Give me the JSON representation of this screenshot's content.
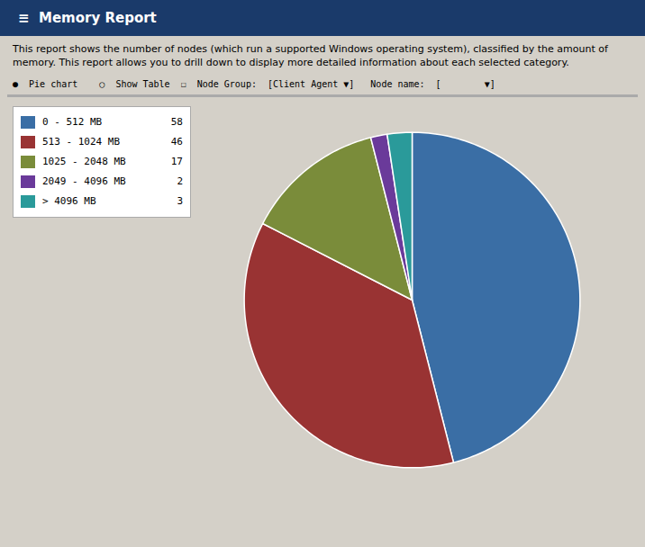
{
  "chart_data": {
    "type": "pie",
    "title": "≡  Memory Report",
    "subtitle": "This report shows the number of nodes (which run a supported Windows operating system), classified by the amount of\nmemory. This report allows you to drill down to display more detailed information about each selected category.",
    "annotations": [
      "●  Pie chart    ○  Show Table  ☐  Node Group:  [Client Agent ▼]   Node name:  [        ▼]"
    ],
    "categories": [
      "0 - 512 MB",
      "513 - 1024 MB",
      "1025 - 2048 MB",
      "2049 - 4096 MB",
      "> 4096 MB"
    ],
    "values": [
      58,
      46,
      17,
      2,
      3
    ],
    "colors": [
      "#3a6ea5",
      "#993333",
      "#7a8c3a",
      "#6a3a9a",
      "#2a9a9a"
    ],
    "legend": "top-left"
  }
}
